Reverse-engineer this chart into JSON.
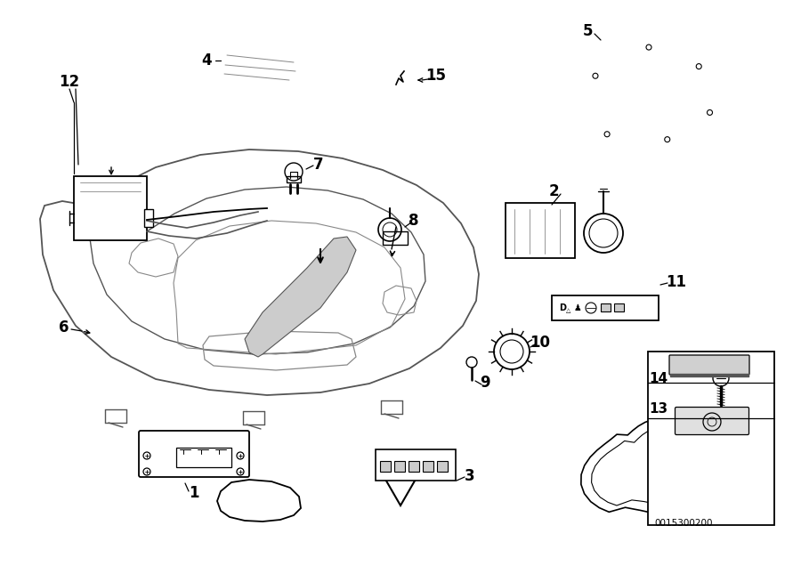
{
  "bg_color": "#ffffff",
  "fig_width": 9.0,
  "fig_height": 6.36,
  "dpi": 100,
  "line_color": "#000000",
  "gray1": "#555555",
  "gray2": "#888888",
  "gray3": "#aaaaaa",
  "gray_light": "#cccccc",
  "part_code": "0015300200"
}
